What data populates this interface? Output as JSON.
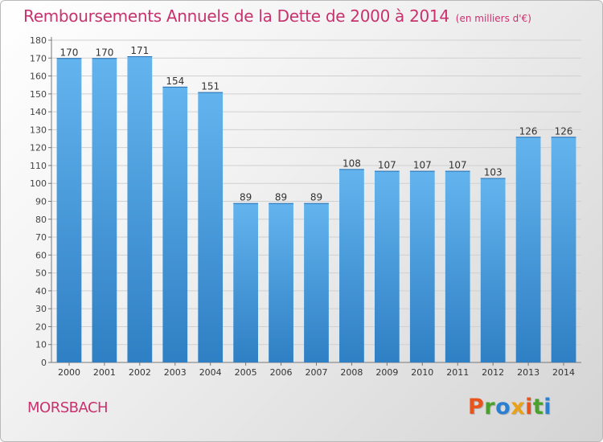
{
  "title": "Remboursements Annuels de la Dette de 2000 à 2014",
  "unit": "(en milliers d'€)",
  "commune": "MORSBACH",
  "logo": {
    "letters": [
      "P",
      "r",
      "o",
      "x",
      "i",
      "t",
      "i"
    ],
    "colors": [
      "#e8541c",
      "#4aa02c",
      "#2a7fd0",
      "#e8a21a",
      "#e8541c",
      "#4aa02c",
      "#2a7fd0"
    ]
  },
  "colors": {
    "bar_light": "#63b4ee",
    "bar_dark": "#2f7fc4",
    "title": "#c8326e"
  },
  "chart_data": {
    "type": "bar",
    "categories": [
      "2000",
      "2001",
      "2002",
      "2003",
      "2004",
      "2005",
      "2006",
      "2007",
      "2008",
      "2009",
      "2010",
      "2011",
      "2012",
      "2013",
      "2014"
    ],
    "values": [
      170,
      170,
      171,
      154,
      151,
      89,
      89,
      89,
      108,
      107,
      107,
      107,
      103,
      126,
      126
    ],
    "ylim": [
      0,
      180
    ],
    "yticks": [
      0,
      10,
      20,
      30,
      40,
      50,
      60,
      70,
      80,
      90,
      100,
      110,
      120,
      130,
      140,
      150,
      160,
      170,
      180
    ],
    "grid": true,
    "title": "Remboursements Annuels de la Dette de 2000 à 2014",
    "xlabel": "",
    "ylabel": ""
  }
}
